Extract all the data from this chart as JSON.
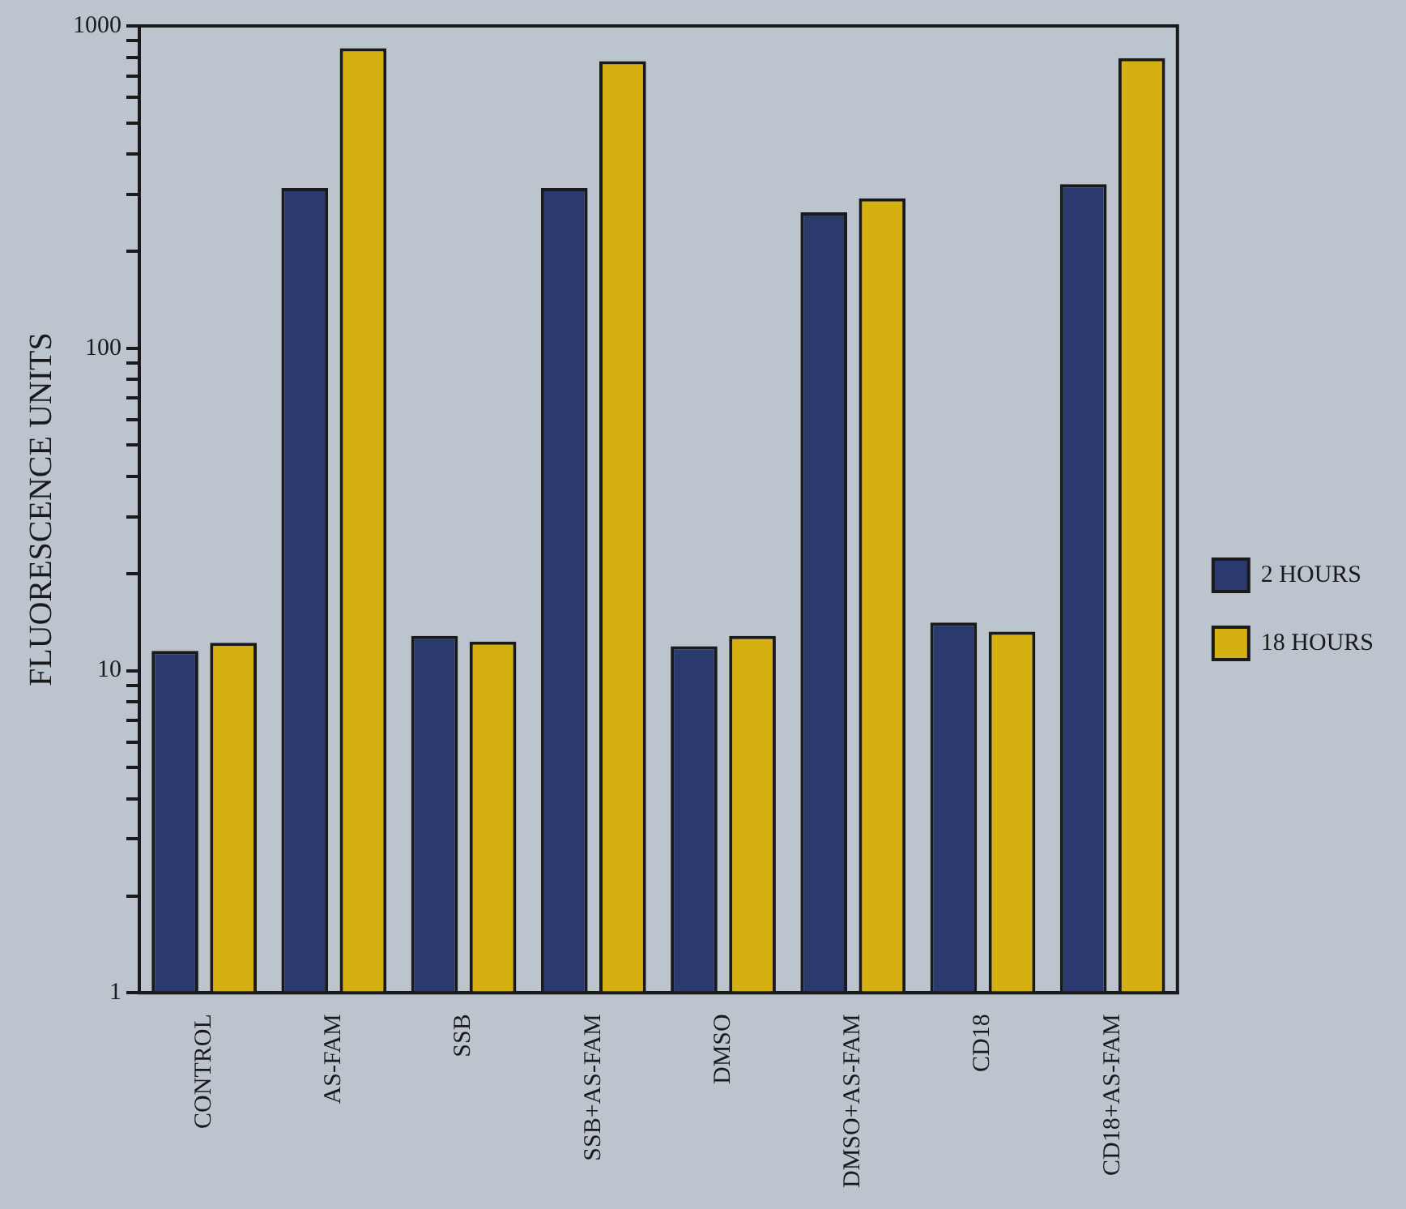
{
  "chart_data": {
    "type": "bar",
    "ylabel": "FLUORESCENCE UNITS",
    "categories": [
      "CONTROL",
      "AS-FAM",
      "SSB",
      "SSB+AS-FAM",
      "DMSO",
      "DMSO+AS-FAM",
      "CD18",
      "CD18+AS-FAM"
    ],
    "series": [
      {
        "name": "2 HOURS",
        "color": "#2b3a6e",
        "values": [
          11.5,
          314,
          12.8,
          314,
          11.9,
          264,
          14.1,
          323
        ]
      },
      {
        "name": "18 HOURS",
        "color": "#d4b010",
        "values": [
          12.2,
          853,
          12.3,
          777,
          12.8,
          292,
          13.2,
          794
        ]
      }
    ],
    "log": true,
    "ylim": [
      1,
      1000
    ],
    "yticks": [
      1,
      {
        "value": 2,
        "label": null
      },
      {
        "value": 3,
        "label": null
      },
      {
        "value": 4,
        "label": null
      },
      {
        "value": 5,
        "label": null
      },
      {
        "value": 6,
        "label": null
      },
      {
        "value": 7,
        "label": null
      },
      {
        "value": 8,
        "label": null
      },
      {
        "value": 9,
        "label": null
      },
      10,
      {
        "value": 20,
        "label": null
      },
      {
        "value": 30,
        "label": null
      },
      {
        "value": 40,
        "label": null
      },
      {
        "value": 50,
        "label": null
      },
      {
        "value": 60,
        "label": null
      },
      {
        "value": 70,
        "label": null
      },
      {
        "value": 80,
        "label": null
      },
      {
        "value": 90,
        "label": null
      },
      100,
      {
        "value": 200,
        "label": null
      },
      {
        "value": 300,
        "label": null
      },
      {
        "value": 400,
        "label": null
      },
      {
        "value": 500,
        "label": null
      },
      {
        "value": 600,
        "label": null
      },
      {
        "value": 700,
        "label": null
      },
      {
        "value": 800,
        "label": null
      },
      {
        "value": 900,
        "label": null
      },
      1000
    ],
    "grid": false,
    "legend": "right"
  }
}
